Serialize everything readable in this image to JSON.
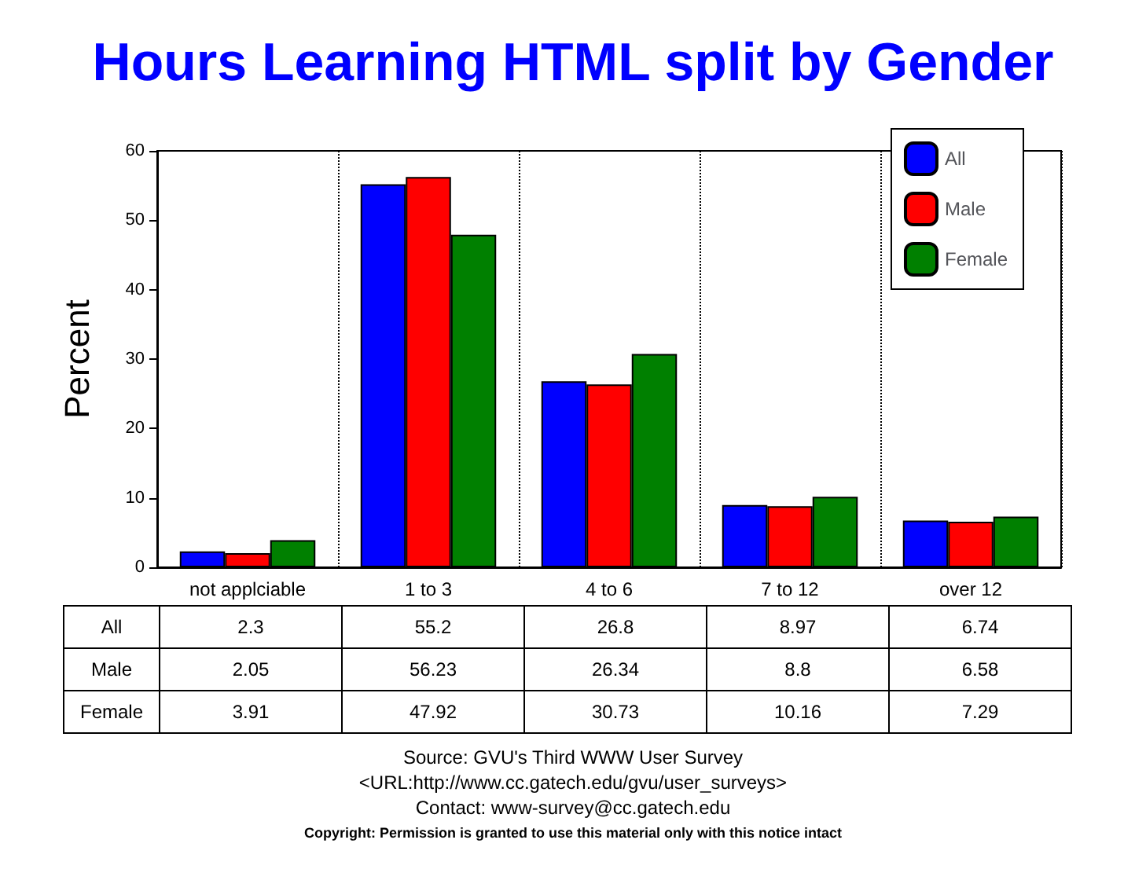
{
  "chart_data": {
    "type": "bar",
    "title": "Hours Learning HTML split by Gender",
    "ylabel": "Percent",
    "categories": [
      "not applciable",
      "1 to 3",
      "4 to 6",
      "7 to 12",
      "over 12"
    ],
    "series": [
      {
        "name": "All",
        "color": "#0000ff",
        "values": [
          2.3,
          55.2,
          26.8,
          8.97,
          6.74
        ]
      },
      {
        "name": "Male",
        "color": "#ff0000",
        "values": [
          2.05,
          56.23,
          26.34,
          8.8,
          6.58
        ]
      },
      {
        "name": "Female",
        "color": "#008000",
        "values": [
          3.91,
          47.92,
          30.73,
          10.16,
          7.29
        ]
      }
    ],
    "ylim": [
      0,
      60
    ],
    "yticks": [
      0,
      10,
      20,
      30,
      40,
      50,
      60
    ],
    "grid": "x",
    "legend": "top right",
    "data_labels": true,
    "annotations": [
      "Source: GVU's Third WWW User Survey",
      "<URL:http://www.cc.gatech.edu/gvu/user_surveys>",
      "Contact: www-survey@cc.gatech.edu",
      "Copyright: Permission is granted to use this material only with this notice intact"
    ]
  }
}
